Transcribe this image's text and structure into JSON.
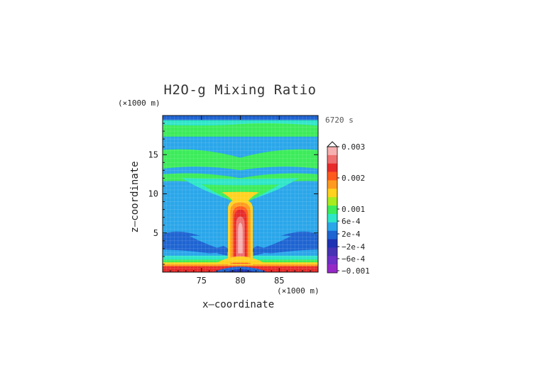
{
  "chart_data": {
    "type": "heatmap",
    "title": "H2O-g Mixing Ratio",
    "time_label": "6720 s",
    "y_unit": "(×1000 m)",
    "x_unit": "(×1000 m)",
    "xlabel": "x–coordinate",
    "ylabel": "z–coordinate",
    "x_ticks": [
      "75",
      "80",
      "85"
    ],
    "y_ticks": [
      "5",
      "10",
      "15"
    ],
    "xlim": [
      70,
      90
    ],
    "ylim": [
      0,
      20
    ],
    "colorbar_labels": [
      "0.003",
      "0.002",
      "0.001",
      "6e-4",
      "2e-4",
      "−2e-4",
      "−6e-4",
      "−0.001"
    ],
    "colorbar_colors": [
      "#f7b0b0",
      "#ef7070",
      "#e82a2a",
      "#ff5a1e",
      "#ff9a1e",
      "#ffd21e",
      "#a8ec1e",
      "#3cec5a",
      "#2ee6c8",
      "#2aa6ea",
      "#1e64d2",
      "#1e32b4",
      "#4632b4",
      "#6e2ec8",
      "#9628c8"
    ],
    "field_description_levels": {
      "background": "#2aa6ea",
      "band_green": "#3cec5a",
      "band_cyan": "#2ee6c8",
      "plume_yellow": "#ffd21e",
      "plume_orange": "#ff9a1e",
      "plume_red": "#e82a2a",
      "plume_pink": "#f7b0b0",
      "dark_blue": "#1e64d2"
    }
  }
}
